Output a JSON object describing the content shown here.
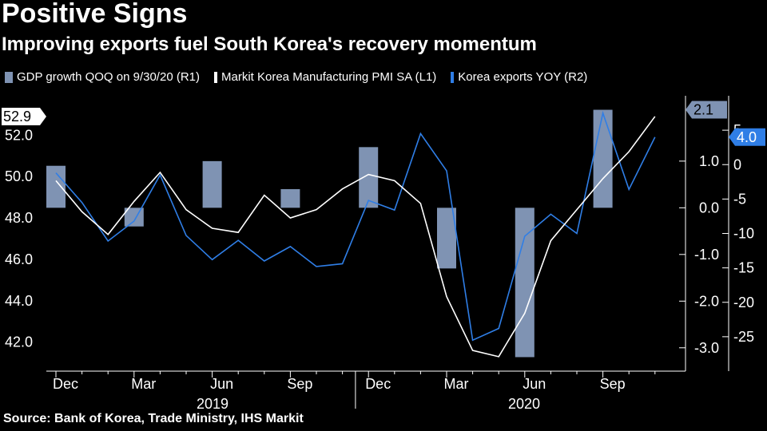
{
  "chart_data": {
    "type": "bar+line",
    "title": "Positive Signs",
    "subtitle": "Improving exports fuel South Korea's recovery momentum",
    "source": "Source: Bank of Korea, Trade Ministry, IHS Markit",
    "month_labels": [
      "Dec",
      "Mar",
      "Jun",
      "Sep",
      "Dec",
      "Mar",
      "Jun",
      "Sep"
    ],
    "year_labels": [
      "2019",
      "2020"
    ],
    "colors": {
      "gdp": "#7f93b3",
      "pmi": "#ffffff",
      "exports": "#2f7ee6",
      "axis": "#ffffff",
      "background": "#000000"
    },
    "series": [
      {
        "name": "GDP growth QOQ on 9/30/20 (R1)",
        "kind": "bar",
        "values": [
          0.9,
          -0.4,
          1.0,
          0.4,
          1.3,
          -1.3,
          -3.2,
          2.1
        ],
        "x_index": [
          0,
          3,
          6,
          9,
          12,
          15,
          18,
          21
        ]
      },
      {
        "name": "Markit Korea Manufacturing PMI SA (L1)",
        "kind": "line",
        "values": [
          49.8,
          48.3,
          47.2,
          48.8,
          50.2,
          48.4,
          47.5,
          47.3,
          49.1,
          48.0,
          48.4,
          49.4,
          50.1,
          49.8,
          48.7,
          44.2,
          41.6,
          41.3,
          43.4,
          46.9,
          48.4,
          49.9,
          51.2,
          52.9
        ]
      },
      {
        "name": "Korea exports YOY (R2)",
        "kind": "line",
        "values": [
          -1.2,
          -5.5,
          -11.1,
          -8.2,
          -1.5,
          -10.3,
          -13.8,
          -11.0,
          -14.0,
          -11.9,
          -14.8,
          -14.4,
          -5.2,
          -6.6,
          4.5,
          -0.9,
          -25.5,
          -23.8,
          -10.4,
          -7.2,
          -10.0,
          7.5,
          -3.6,
          4.0
        ]
      }
    ],
    "axes": {
      "left": {
        "label": "L1",
        "ticks": [
          "42.0",
          "44.0",
          "46.0",
          "48.0",
          "50.0",
          "52.0"
        ],
        "range": [
          40.6,
          53.9
        ]
      },
      "right1": {
        "label": "R1",
        "ticks": [
          "-3.0",
          "-2.0",
          "-1.0",
          "0.0",
          "1.0"
        ],
        "range": [
          -3.5,
          2.4
        ]
      },
      "right2": {
        "label": "R2",
        "ticks": [
          "-25",
          "-20",
          "-15",
          "-10",
          "-5",
          "0",
          "5"
        ],
        "range": [
          -30.0,
          10.0
        ]
      }
    },
    "last_value_tags": {
      "pmi": "52.9",
      "gdp": "2.1",
      "exports": "4.0"
    }
  }
}
